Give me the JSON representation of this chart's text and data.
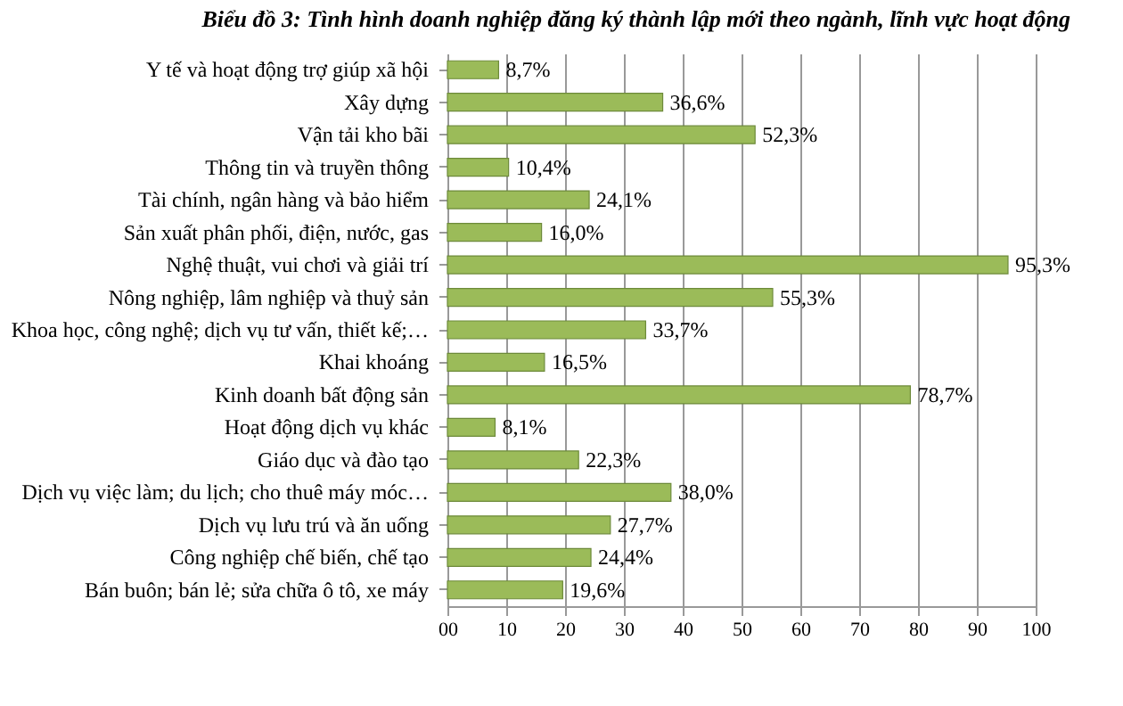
{
  "chart_data": {
    "type": "bar",
    "orientation": "horizontal",
    "title": "Biểu đồ 3: Tình hình doanh nghiệp đăng ký thành lập mới theo ngành, lĩnh vực hoạt động",
    "categories": [
      "Y tế và hoạt động trợ giúp xã hội",
      "Xây dựng",
      "Vận tải kho bãi",
      "Thông tin và truyền thông",
      "Tài chính, ngân hàng và bảo hiểm",
      "Sản xuất phân phối, điện, nước, gas",
      "Nghệ thuật, vui chơi và giải trí",
      "Nông nghiệp, lâm nghiệp và thuỷ sản",
      "Khoa học, công nghệ; dịch vụ tư vấn, thiết kế;…",
      "Khai khoáng",
      "Kinh doanh bất động sản",
      "Hoạt động dịch vụ khác",
      "Giáo dục và đào tạo",
      "Dịch vụ việc làm; du lịch; cho thuê máy móc…",
      "Dịch vụ lưu trú và ăn uống",
      "Công nghiệp chế biến, chế tạo",
      "Bán buôn; bán lẻ; sửa chữa ô tô, xe máy"
    ],
    "values": [
      8.7,
      36.6,
      52.3,
      10.4,
      24.1,
      16.0,
      95.3,
      55.3,
      33.7,
      16.5,
      78.7,
      8.1,
      22.3,
      38.0,
      27.7,
      24.4,
      19.6
    ],
    "value_labels": [
      "8,7%",
      "36,6%",
      "52,3%",
      "10,4%",
      "24,1%",
      "16,0%",
      "95,3%",
      "55,3%",
      "33,7%",
      "16,5%",
      "78,7%",
      "8,1%",
      "22,3%",
      "38,0%",
      "27,7%",
      "24,4%",
      "19,6%"
    ],
    "color": "#9bbb59",
    "xlim": [
      0,
      100
    ],
    "xticks": [
      {
        "value": 0,
        "label": "00"
      },
      10,
      20,
      30,
      40,
      50,
      60,
      70,
      80,
      90,
      100
    ],
    "grid": "x"
  }
}
